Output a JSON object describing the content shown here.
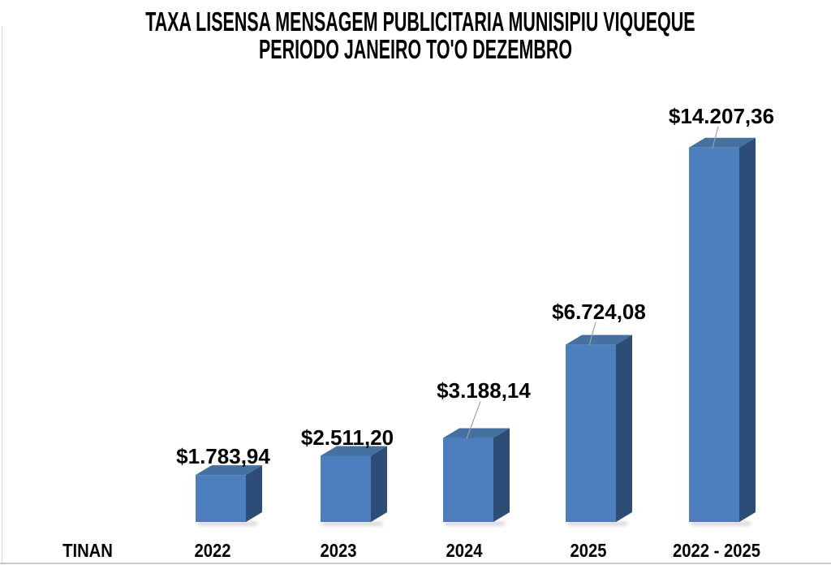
{
  "title": {
    "line1": "TAXA LISENSA MENSAGEM PUBLICITARIA MUNISIPIU VIQUEQUE",
    "line2": "PERIODO JANEIRO TO'O DEZEMBRO"
  },
  "chart_data": {
    "type": "bar",
    "style": "3d",
    "title": "TAXA LISENSA MENSAGEM PUBLICITARIA MUNISIPIU VIQUEQUE PERIODO JANEIRO TO'O DEZEMBRO",
    "xlabel": "TINAN",
    "ylabel": "",
    "categories": [
      "2022",
      "2023",
      "2024",
      "2025",
      "2022 - 2025"
    ],
    "values": [
      1783.94,
      2511.2,
      3188.14,
      6724.08,
      14207.36
    ],
    "data_labels": [
      "$1.783,94",
      "$2.511,20",
      "$3.188,14",
      "$6.724,08",
      "$14.207,36"
    ],
    "ylim": [
      0,
      14500
    ],
    "grid": false,
    "legend": "none",
    "colors": {
      "bar_front": "#4D7EBD",
      "bar_top": "#44719F",
      "bar_side": "#2E4D76",
      "leader_line": "#A0A0A0",
      "text": "#000000",
      "border": "#D3D3D3",
      "background": "#FFFFFF"
    }
  }
}
